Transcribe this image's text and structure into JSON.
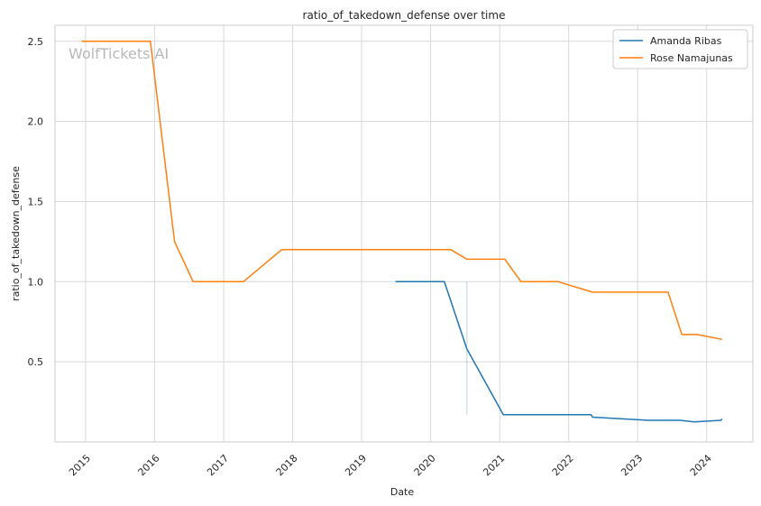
{
  "chart_data": {
    "type": "line",
    "title": "ratio_of_takedown_defense over time",
    "xlabel": "Date",
    "ylabel": "ratio_of_takedown_defense",
    "watermark": "WolfTickets AI",
    "x_ticks": [
      "2015",
      "2016",
      "2017",
      "2018",
      "2019",
      "2020",
      "2021",
      "2022",
      "2023",
      "2024"
    ],
    "y_ticks": [
      "0.5",
      "1.0",
      "1.5",
      "2.0",
      "2.5"
    ],
    "xlim": [
      "2014-07-23",
      "2024-09-02"
    ],
    "ylim": [
      0.0,
      2.6
    ],
    "grid": true,
    "legend_position": "top-right",
    "colors": {
      "Amanda Ribas": "#1f77b4",
      "Rose Namajunas": "#ff7f0e"
    },
    "series": [
      {
        "name": "Amanda Ribas",
        "color": "#1f77b4",
        "points": [
          [
            "2019-06-29",
            1.0
          ],
          [
            "2020-03-14",
            1.0
          ],
          [
            "2020-07-11",
            0.58
          ],
          [
            "2021-01-20",
            0.17
          ],
          [
            "2022-04-30",
            0.17
          ],
          [
            "2022-05-07",
            0.155
          ],
          [
            "2023-03-01",
            0.135
          ],
          [
            "2023-08-12",
            0.135
          ],
          [
            "2023-10-28",
            0.125
          ],
          [
            "2024-03-17",
            0.135
          ],
          [
            "2024-03-23",
            0.145
          ]
        ],
        "band": [
          [
            "2020-07-11",
            0.17,
            1.0
          ]
        ]
      },
      {
        "name": "Rose Namajunas",
        "color": "#ff7f0e",
        "points": [
          [
            "2014-12-12",
            2.5
          ],
          [
            "2015-12-10",
            2.5
          ],
          [
            "2016-04-16",
            1.25
          ],
          [
            "2016-07-23",
            1.0
          ],
          [
            "2017-04-15",
            1.0
          ],
          [
            "2017-11-04",
            1.2
          ],
          [
            "2020-04-18",
            1.2
          ],
          [
            "2020-07-11",
            1.14
          ],
          [
            "2021-01-28",
            1.14
          ],
          [
            "2021-04-24",
            1.0
          ],
          [
            "2021-11-06",
            1.0
          ],
          [
            "2022-05-07",
            0.935
          ],
          [
            "2023-06-11",
            0.935
          ],
          [
            "2023-08-23",
            0.67
          ],
          [
            "2023-11-12",
            0.67
          ],
          [
            "2024-03-23",
            0.64
          ]
        ]
      }
    ]
  }
}
